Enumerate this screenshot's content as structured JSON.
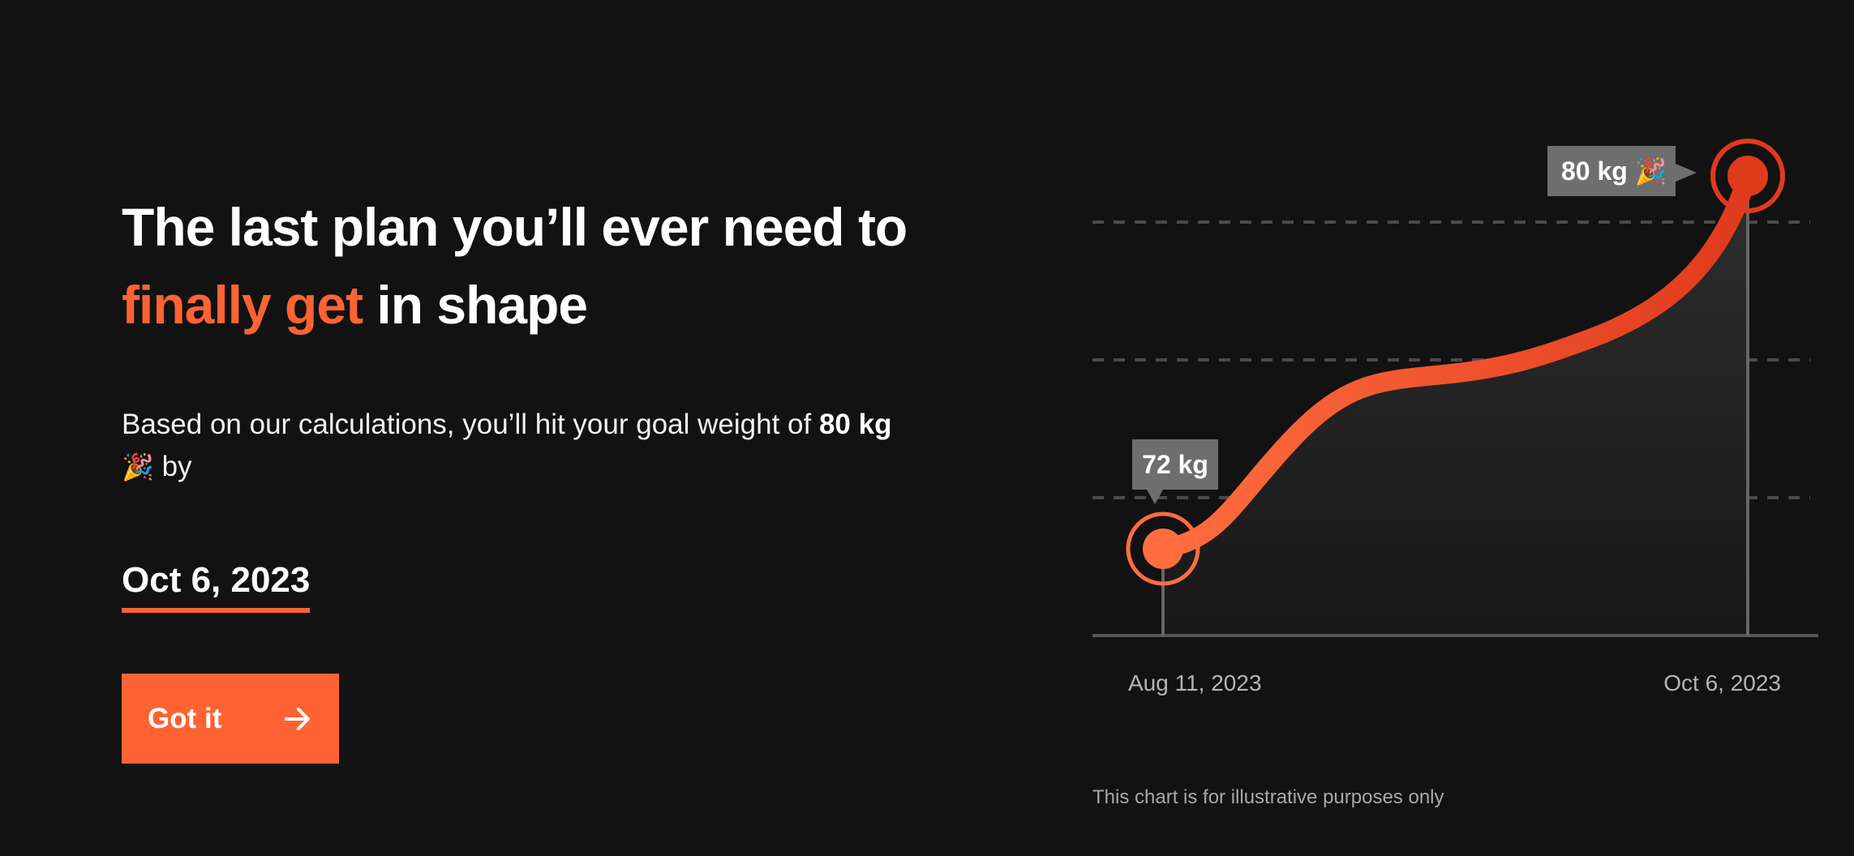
{
  "headline": {
    "line1": "The last plan you’ll ever need to",
    "accent": "finally get",
    "rest": " in shape"
  },
  "description": {
    "prefix": "Based on our calculations, you’ll hit your goal weight of ",
    "goal": "80 kg",
    "emoji": "🎉",
    "suffix": " by"
  },
  "goal_date": "Oct 6, 2023",
  "button": {
    "label": "Got it",
    "icon": "arrow-right-icon"
  },
  "chart_note": "This chart is for illustrative purposes only",
  "colors": {
    "accent": "#ff6333",
    "accent_dark": "#e04020",
    "background": "#121212",
    "tag": "#6e6e6e"
  },
  "chart_data": {
    "type": "line",
    "x": [
      "Aug 11, 2023",
      "Oct 6, 2023"
    ],
    "series": [
      {
        "values": [
          72,
          80
        ]
      }
    ],
    "labels": [
      "72 kg",
      "80 kg"
    ],
    "label_emoji": "🎉",
    "grid": true
  }
}
